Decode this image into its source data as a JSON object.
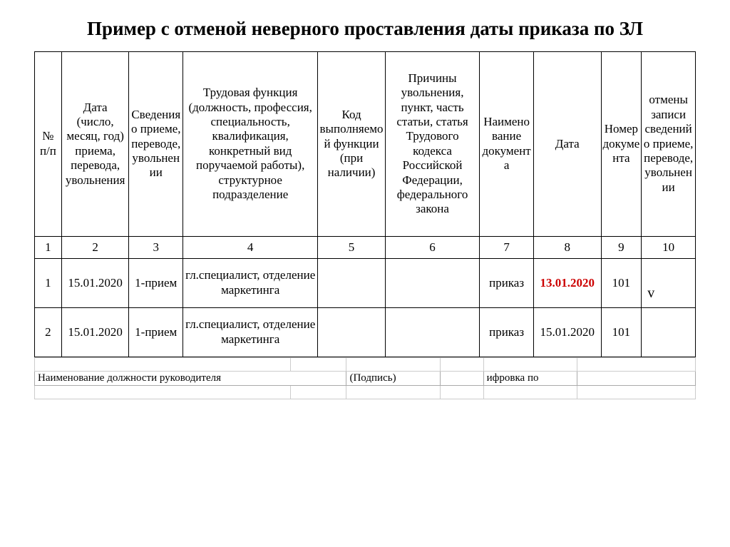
{
  "title": "Пример с отменой неверного проставления даты приказа по ЗЛ",
  "columns": {
    "headers": [
      "№ п/п",
      "Дата (число, месяц, год) приема, перевода, увольнения",
      "Сведения о приеме, переводе, увольнении",
      "Трудовая функция (должность, профессия, специальность, квалификация, конкретный вид поручаемой работы), структурное подразделение",
      "Код выполняемой функции (при наличии)",
      "Причины увольнения, пункт, часть статьи, статья Трудового кодекса Российской Федерации, федерального закона",
      "Наименование документа",
      "Дата",
      "Номер документа",
      "отмены записи сведений о приеме, переводе, увольнении"
    ],
    "numbers": [
      "1",
      "2",
      "3",
      "4",
      "5",
      "6",
      "7",
      "8",
      "9",
      "10"
    ],
    "widths_pct": [
      4,
      10,
      8,
      20,
      10,
      14,
      8,
      10,
      6,
      8
    ]
  },
  "rows": [
    {
      "n": "1",
      "date": "15.01.2020",
      "action": "1-прием",
      "func": "гл.специалист, отделение маркетинга",
      "code": "",
      "reason": "",
      "docname": "приказ",
      "docdate": "13.01.2020",
      "docdate_emphasis": true,
      "docnum": "101",
      "cancel": "v"
    },
    {
      "n": "2",
      "date": "15.01.2020",
      "action": "1-прием",
      "func": "гл.специалист, отделение маркетинга",
      "code": "",
      "reason": "",
      "docname": "приказ",
      "docdate": "15.01.2020",
      "docdate_emphasis": false,
      "docnum": "101",
      "cancel": ""
    }
  ],
  "footer": {
    "position_label": "Наименование должности руководителя",
    "signature_label": "(Подпись)",
    "decode_label": "ифровка по"
  },
  "styling": {
    "background_color": "#ffffff",
    "text_color": "#000000",
    "border_color": "#000000",
    "emphasis_color": "#cc0000",
    "title_fontsize": 27,
    "cell_fontsize": 17,
    "footer_fontsize": 15,
    "font_family": "Times New Roman"
  }
}
